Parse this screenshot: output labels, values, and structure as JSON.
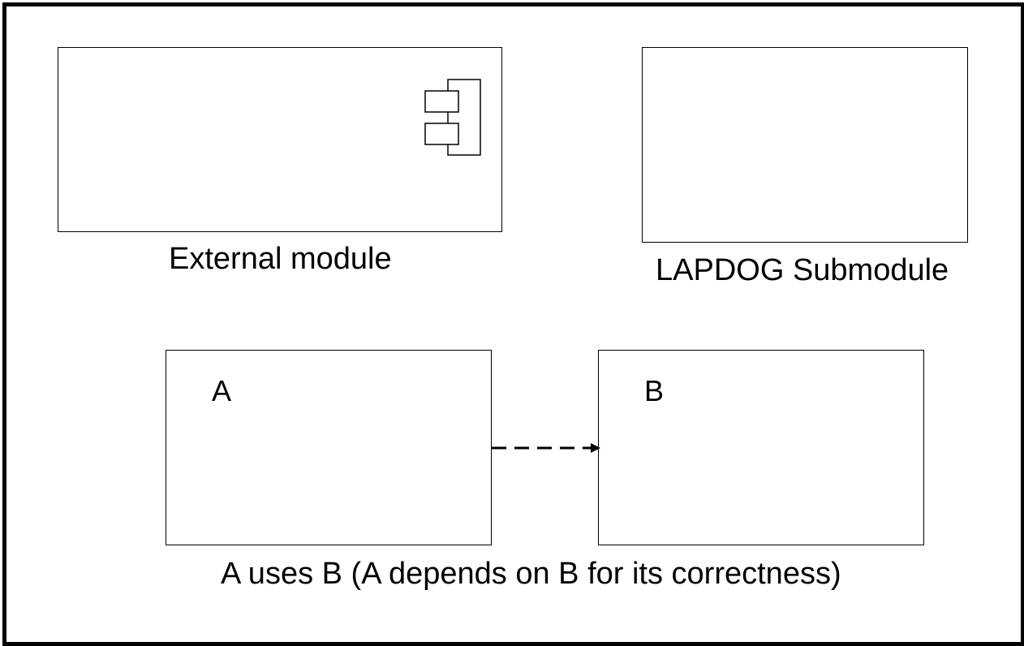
{
  "legend": {
    "external_module": {
      "caption": "External module",
      "icon": "component-icon"
    },
    "submodule": {
      "caption": "LAPDOG Submodule"
    },
    "uses_relation": {
      "source_label": "A",
      "target_label": "B",
      "caption": "A uses B (A depends on B for its correctness)",
      "arrow_style": "dashed"
    }
  },
  "colors": {
    "stroke": "#000000",
    "background": "#ffffff"
  }
}
